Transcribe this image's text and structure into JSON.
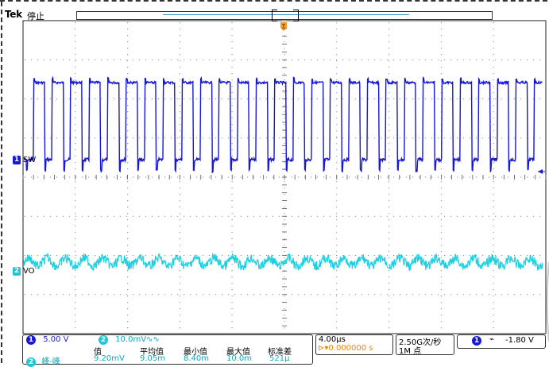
{
  "topbar": {
    "brand": "Tek",
    "run_status": "停止"
  },
  "channels": {
    "ch1": {
      "number": "1",
      "label": "SW",
      "scale": "5.00 V",
      "color": "#1717d6"
    },
    "ch2": {
      "number": "2",
      "label": "VO",
      "scale": "10.0mV",
      "coupling": "∿∿",
      "color": "#20c6d6"
    }
  },
  "measurements": {
    "channel_badge": "2",
    "name": "峰-峰",
    "headers": [
      "值",
      "平均值",
      "最小值",
      "最大值",
      "标准差"
    ],
    "values": [
      "9.20mV",
      "9.05m",
      "8.40m",
      "10.0m",
      "521μ"
    ]
  },
  "timebase": {
    "scale": "4.00μs",
    "position": "0.000000 s",
    "position_icon": "trigger-delay-icon"
  },
  "acquisition": {
    "sample_rate": "2.50G次/秒",
    "record_length": "1M 点"
  },
  "trigger": {
    "source": "1",
    "slope": "falling-edge",
    "slope_glyph": "⌁",
    "level": "-1.80 V"
  }
}
